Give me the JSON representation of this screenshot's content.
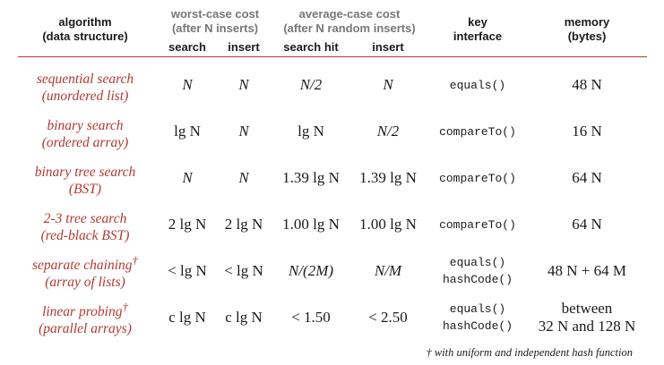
{
  "headers": {
    "algorithm": "algorithm",
    "data_structure": "(data structure)",
    "worst_case": "worst-case cost",
    "worst_case_sub": "(after N inserts)",
    "average_case": "average-case cost",
    "average_case_sub": "(after N random inserts)",
    "search": "search",
    "insert": "insert",
    "search_hit": "search hit",
    "avg_insert": "insert",
    "key": "key",
    "interface": "interface",
    "memory": "memory",
    "bytes": "(bytes)"
  },
  "rows": [
    {
      "algo": "sequential search",
      "ds": "(unordered list)",
      "dagger": "",
      "worst_search": "N",
      "worst_insert": "N",
      "avg_search": "N/2",
      "avg_insert": "N",
      "iface1": "equals()",
      "iface2": "",
      "mem1": "48 N",
      "mem2": ""
    },
    {
      "algo": "binary search",
      "ds": "(ordered array)",
      "dagger": "",
      "worst_search": "lg N",
      "worst_insert": "N",
      "avg_search": "lg N",
      "avg_insert": "N/2",
      "iface1": "compareTo()",
      "iface2": "",
      "mem1": "16 N",
      "mem2": ""
    },
    {
      "algo": "binary tree search",
      "ds": "(BST)",
      "dagger": "",
      "worst_search": "N",
      "worst_insert": "N",
      "avg_search": "1.39 lg N",
      "avg_insert": "1.39 lg N",
      "iface1": "compareTo()",
      "iface2": "",
      "mem1": "64 N",
      "mem2": ""
    },
    {
      "algo": "2-3 tree search",
      "ds": "(red-black BST)",
      "dagger": "",
      "worst_search": "2 lg N",
      "worst_insert": "2 lg N",
      "avg_search": "1.00 lg N",
      "avg_insert": "1.00 lg N",
      "iface1": "compareTo()",
      "iface2": "",
      "mem1": "64 N",
      "mem2": ""
    },
    {
      "algo": "separate chaining",
      "ds": "(array of lists)",
      "dagger": "†",
      "worst_search": "< lg N",
      "worst_insert": "< lg N",
      "avg_search": "N/(2M)",
      "avg_insert": "N/M",
      "iface1": "equals()",
      "iface2": "hashCode()",
      "mem1": "48 N + 64 M",
      "mem2": ""
    },
    {
      "algo": "linear probing",
      "ds": "(parallel arrays)",
      "dagger": "†",
      "worst_search": "c lg N",
      "worst_insert": "c lg N",
      "avg_search": "< 1.50",
      "avg_insert": "< 2.50",
      "iface1": "equals()",
      "iface2": "hashCode()",
      "mem1": "between",
      "mem2": "32 N and 128 N"
    }
  ],
  "footnote": "† with uniform and independent hash function"
}
